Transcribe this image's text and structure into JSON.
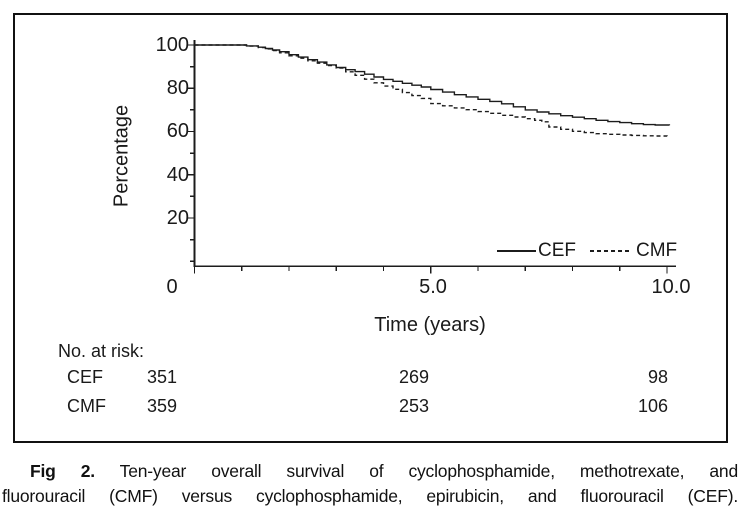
{
  "chart_data": {
    "type": "line",
    "subtype": "kaplan-meier-step",
    "title": "",
    "xlabel": "Time (years)",
    "ylabel": "Percentage",
    "xlim": [
      0,
      10.5
    ],
    "ylim": [
      0,
      105
    ],
    "grid": false,
    "legend_position": "lower right inside plot",
    "x_axis": {
      "major_ticks": [
        0,
        5,
        10
      ],
      "major_labels": [
        "0",
        "5.0",
        "10.0"
      ],
      "minor_tick_every": 1
    },
    "y_axis": {
      "major_ticks": [
        100,
        80,
        60,
        40,
        20
      ],
      "major_labels": [
        "100",
        "80",
        "60",
        "40",
        "20"
      ],
      "minor_ticks": [
        90,
        70,
        50,
        30,
        10,
        0
      ]
    },
    "series": [
      {
        "name": "CEF",
        "line_style": "solid",
        "color": "#1c1c1c",
        "points": [
          [
            0,
            100
          ],
          [
            0.55,
            100
          ],
          [
            0.95,
            100
          ],
          [
            1.1,
            99.6
          ],
          [
            1.35,
            99
          ],
          [
            1.5,
            98.4
          ],
          [
            1.65,
            97.7
          ],
          [
            1.8,
            96.9
          ],
          [
            2.0,
            95.5
          ],
          [
            2.2,
            94.4
          ],
          [
            2.4,
            93.2
          ],
          [
            2.6,
            92.1
          ],
          [
            2.8,
            90.8
          ],
          [
            3.0,
            89.6
          ],
          [
            3.2,
            88.6
          ],
          [
            3.4,
            87.7
          ],
          [
            3.6,
            86.5
          ],
          [
            3.8,
            85.2
          ],
          [
            4.0,
            84.1
          ],
          [
            4.2,
            83.2
          ],
          [
            4.4,
            82.3
          ],
          [
            4.6,
            81.4
          ],
          [
            4.8,
            80.6
          ],
          [
            5.0,
            79.4
          ],
          [
            5.25,
            78.2
          ],
          [
            5.5,
            77.0
          ],
          [
            5.75,
            76.0
          ],
          [
            6.0,
            74.9
          ],
          [
            6.25,
            73.9
          ],
          [
            6.5,
            72.8
          ],
          [
            6.75,
            71.4
          ],
          [
            7.0,
            70.0
          ],
          [
            7.25,
            69.0
          ],
          [
            7.5,
            68.2
          ],
          [
            7.75,
            67.3
          ],
          [
            8.0,
            66.6
          ],
          [
            8.25,
            65.9
          ],
          [
            8.5,
            65.2
          ],
          [
            8.75,
            64.6
          ],
          [
            9.0,
            64.1
          ],
          [
            9.25,
            63.6
          ],
          [
            9.5,
            63.2
          ],
          [
            9.75,
            63.0
          ],
          [
            10.05,
            62.9
          ]
        ]
      },
      {
        "name": "CMF",
        "line_style": "dashed",
        "color": "#1c1c1c",
        "points": [
          [
            0,
            100
          ],
          [
            0.55,
            100
          ],
          [
            0.95,
            100
          ],
          [
            1.1,
            99.5
          ],
          [
            1.35,
            98.8
          ],
          [
            1.5,
            98.2
          ],
          [
            1.65,
            97.4
          ],
          [
            1.8,
            96.4
          ],
          [
            2.0,
            95.0
          ],
          [
            2.2,
            93.9
          ],
          [
            2.4,
            92.7
          ],
          [
            2.6,
            91.6
          ],
          [
            2.8,
            90.5
          ],
          [
            3.0,
            89.3
          ],
          [
            3.2,
            87.6
          ],
          [
            3.4,
            86.0
          ],
          [
            3.6,
            84.2
          ],
          [
            3.8,
            82.5
          ],
          [
            4.0,
            81.0
          ],
          [
            4.2,
            79.5
          ],
          [
            4.4,
            78.0
          ],
          [
            4.6,
            76.6
          ],
          [
            4.8,
            75.3
          ],
          [
            5.0,
            72.9
          ],
          [
            5.25,
            71.9
          ],
          [
            5.5,
            70.9
          ],
          [
            5.75,
            70.1
          ],
          [
            6.0,
            69.2
          ],
          [
            6.25,
            68.4
          ],
          [
            6.5,
            67.5
          ],
          [
            6.75,
            66.7
          ],
          [
            7.0,
            65.9
          ],
          [
            7.2,
            65.2
          ],
          [
            7.35,
            64.5
          ],
          [
            7.5,
            62.1
          ],
          [
            7.75,
            61.0
          ],
          [
            8.0,
            60.1
          ],
          [
            8.25,
            59.5
          ],
          [
            8.5,
            59.0
          ],
          [
            8.75,
            58.7
          ],
          [
            9.0,
            58.4
          ],
          [
            9.25,
            58.2
          ],
          [
            9.5,
            58.0
          ],
          [
            9.75,
            57.9
          ],
          [
            10.0,
            57.8
          ]
        ]
      }
    ],
    "at_risk": {
      "heading": "No. at risk:",
      "times": [
        0,
        5,
        10
      ],
      "rows": [
        {
          "name": "CEF",
          "counts": [
            "351",
            "269",
            "98"
          ]
        },
        {
          "name": "CMF",
          "counts": [
            "359",
            "253",
            "106"
          ]
        }
      ]
    }
  },
  "caption": {
    "prefix": "Fig 2.",
    "line1": "Ten-year overall survival of cyclophosphamide, methotrexate, and",
    "line2": "fluorouracil (CMF) versus cyclophosphamide, epirubicin, and fluorouracil (CEF)."
  },
  "colors": {
    "ink": "#1c1c1c",
    "border": "#111111",
    "background": "#ffffff"
  }
}
